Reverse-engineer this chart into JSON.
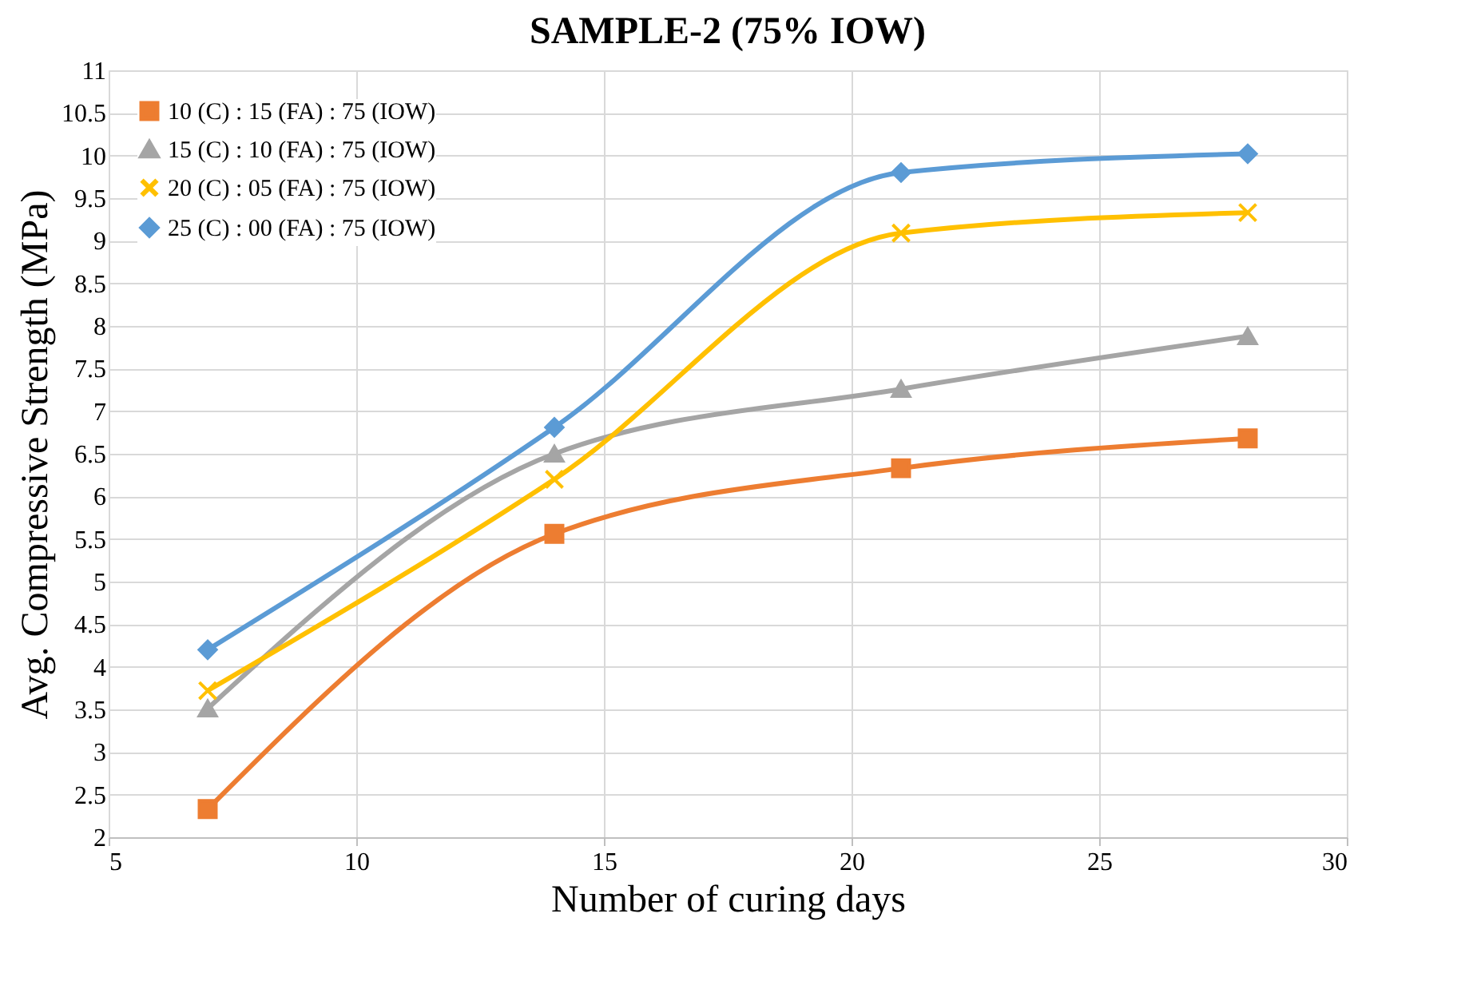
{
  "chart_data": {
    "type": "line",
    "title": "SAMPLE-2 (75% IOW)",
    "xlabel": "Number of curing days",
    "ylabel": "Avg. Compressive  Strength (MPa)",
    "x": [
      7,
      14,
      21,
      28
    ],
    "series": [
      {
        "name": "10 (C) : 15 (FA) : 75 (IOW)",
        "color": "#ed7d31",
        "marker": "square",
        "values": [
          2.33,
          5.56,
          6.33,
          6.68
        ]
      },
      {
        "name": "15 (C) : 10 (FA) : 75 (IOW)",
        "color": "#a5a5a5",
        "marker": "triangle",
        "values": [
          3.51,
          6.5,
          7.26,
          7.88
        ]
      },
      {
        "name": "20 (C) : 05 (FA) : 75 (IOW)",
        "color": "#ffc000",
        "marker": "cross",
        "values": [
          3.72,
          6.2,
          9.09,
          9.33
        ]
      },
      {
        "name": "25 (C) : 00 (FA) : 75 (IOW)",
        "color": "#5b9bd5",
        "marker": "diamond",
        "values": [
          4.2,
          6.81,
          9.8,
          10.02
        ]
      }
    ],
    "xlim": [
      5,
      30
    ],
    "xticks": [
      5,
      10,
      15,
      20,
      25,
      30
    ],
    "ylim": [
      2,
      11
    ],
    "yticks": [
      2,
      2.5,
      3,
      3.5,
      4,
      4.5,
      5,
      5.5,
      6,
      6.5,
      7,
      7.5,
      8,
      8.5,
      9,
      9.5,
      10,
      10.5,
      11
    ],
    "grid": true,
    "legend": "top left",
    "line_style": "solid"
  }
}
